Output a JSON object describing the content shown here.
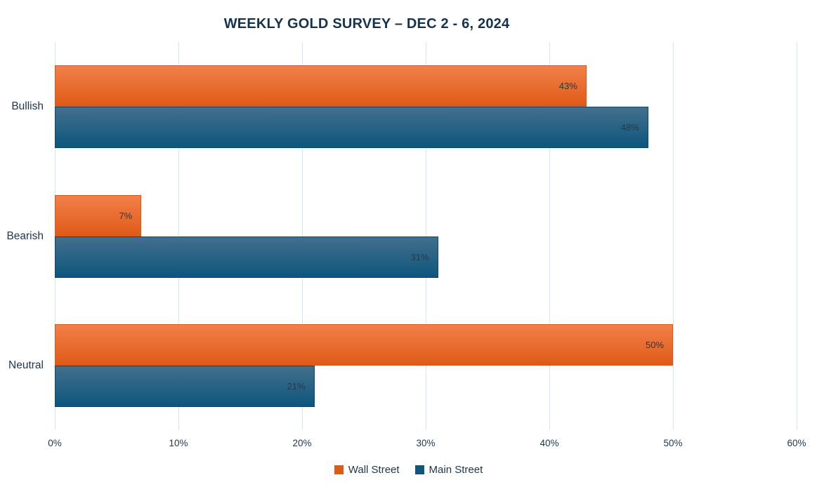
{
  "title": "WEEKLY GOLD SURVEY – DEC 2 - 6, 2024",
  "chart_data": {
    "type": "bar",
    "orientation": "horizontal",
    "title": "WEEKLY GOLD SURVEY – DEC 2 - 6, 2024",
    "categories": [
      "Bullish",
      "Bearish",
      "Neutral"
    ],
    "series": [
      {
        "name": "Wall Street",
        "values": [
          43,
          7,
          50
        ],
        "value_labels": [
          "43%",
          "7%",
          "50%"
        ],
        "color_top": "#F18049",
        "color_bottom": "#E05A17",
        "border_color": "#D65A1C"
      },
      {
        "name": "Main Street",
        "values": [
          48,
          31,
          21
        ],
        "value_labels": [
          "48%",
          "31%",
          "21%"
        ],
        "color_top": "#436F8D",
        "color_bottom": "#0D567D",
        "border_color": "#0C4B6E"
      }
    ],
    "xlim": [
      0,
      60
    ],
    "x_ticks": [
      {
        "value": 0,
        "label": "0%"
      },
      {
        "value": 10,
        "label": "10%"
      },
      {
        "value": 20,
        "label": "20%"
      },
      {
        "value": 30,
        "label": "30%"
      },
      {
        "value": 40,
        "label": "40%"
      },
      {
        "value": 50,
        "label": "50%"
      },
      {
        "value": 60,
        "label": "60%"
      }
    ],
    "grid": "vertical",
    "gridline_color": "#D7E4F1",
    "legend_position": "bottom",
    "text_color": "#1E3450",
    "title_color": "#16334E",
    "value_label_color": "#2B3647"
  }
}
